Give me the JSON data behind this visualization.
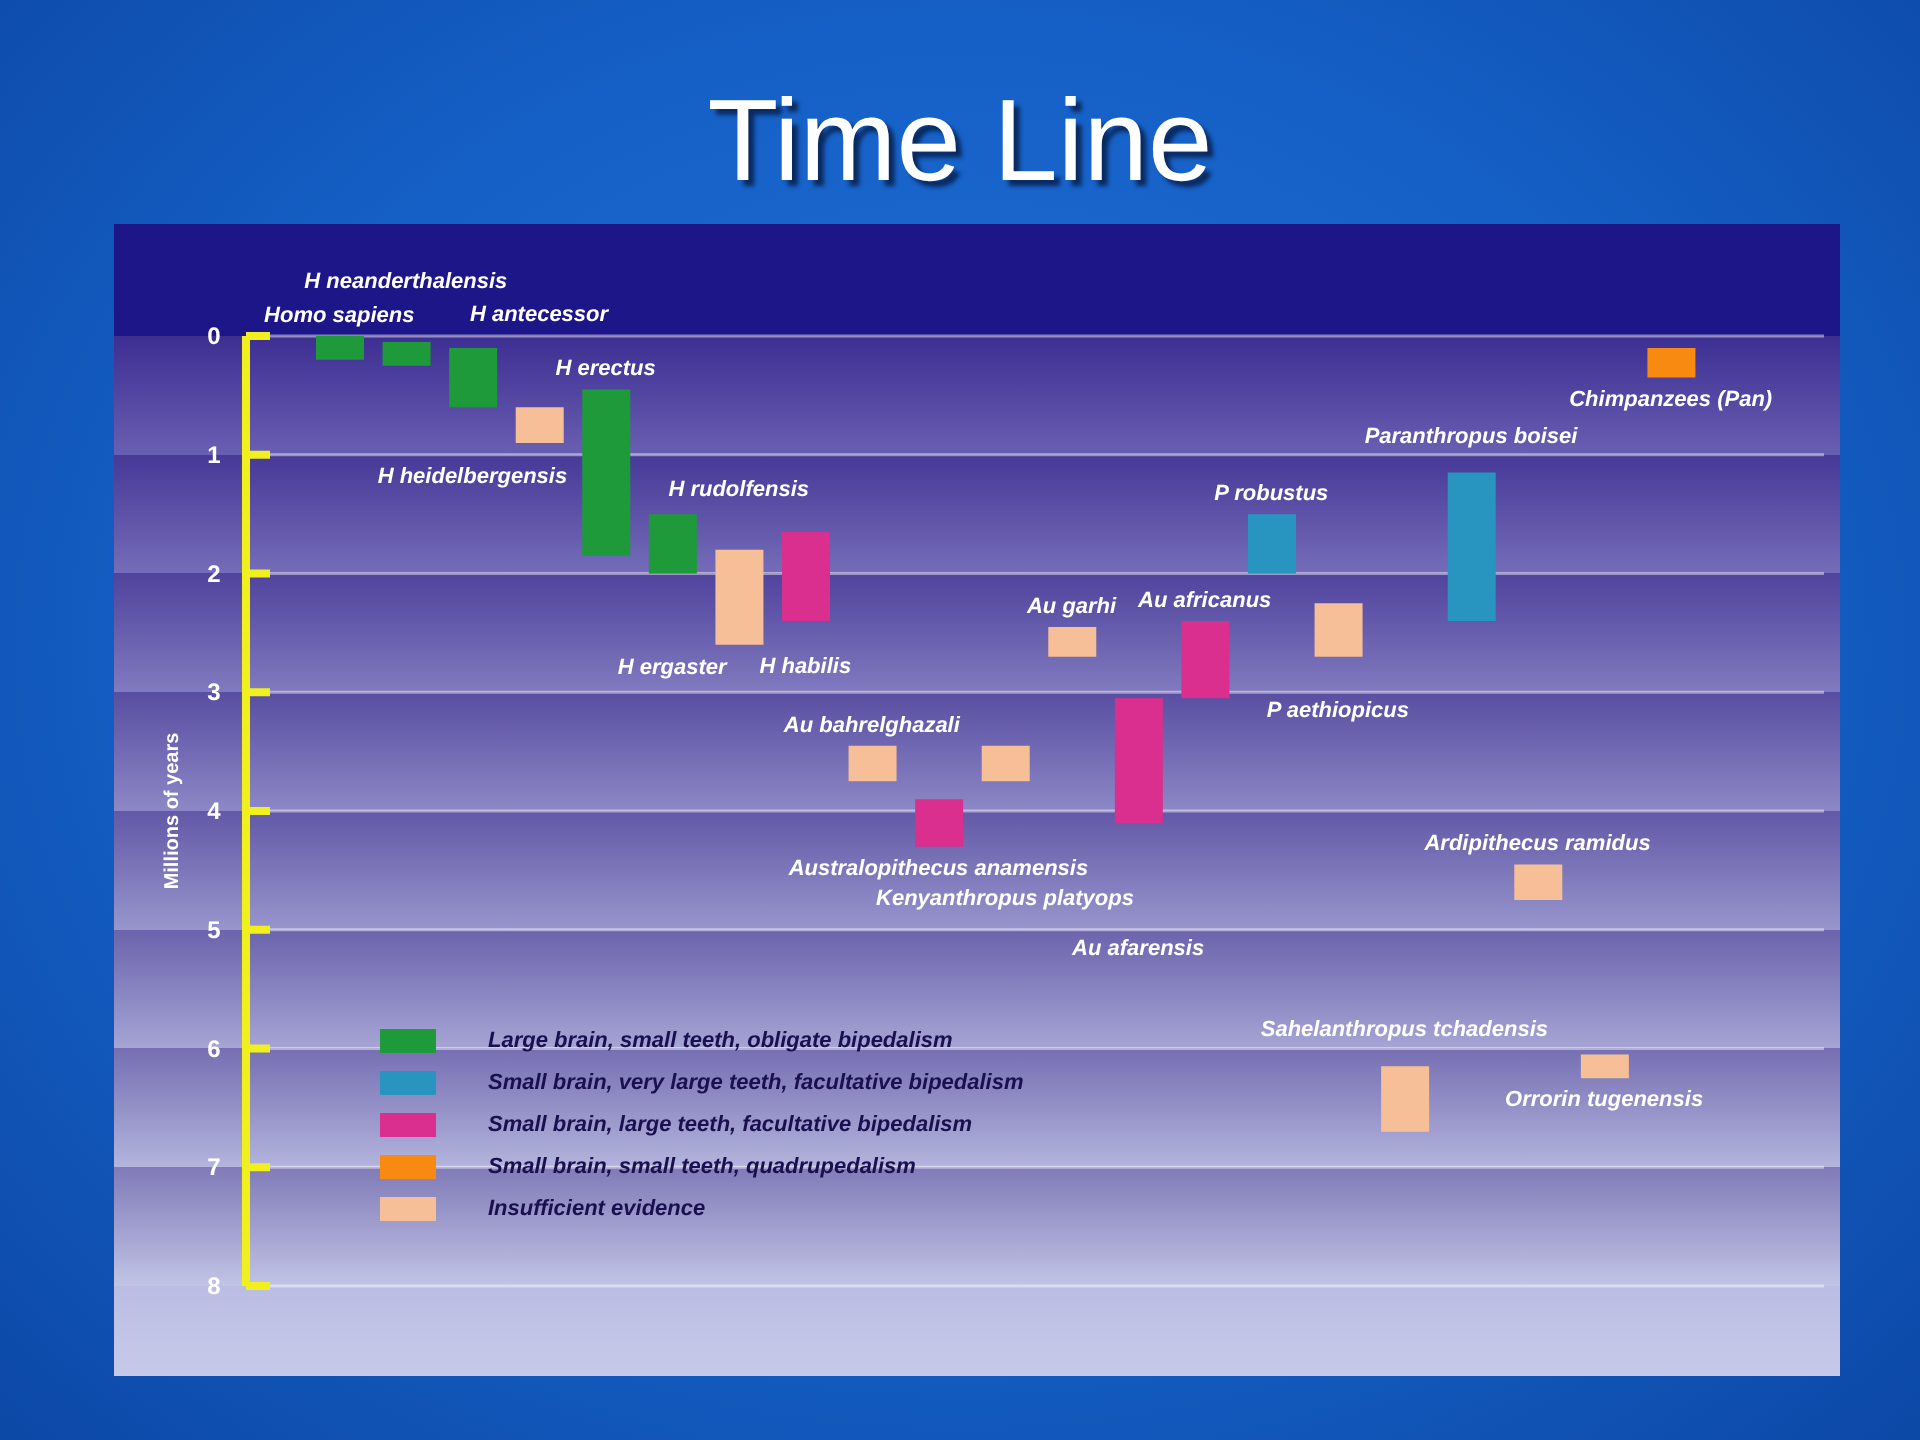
{
  "chart_data": {
    "type": "bar",
    "title": "Time Line",
    "ylabel": "Millions of years",
    "categories": [
      "Homo sapiens",
      "H neanderthalensis",
      "H heidelbergensis",
      "H antecessor",
      "H erectus",
      "H ergaster",
      "H rudolfensis",
      "H habilis",
      "Au bahrelghazali",
      "Australopithecus anamensis",
      "Kenyanthropus platyops",
      "Au garhi",
      "Au afarensis",
      "Au africanus",
      "P robustus",
      "P aethiopicus",
      "Sahelanthropus tchadensis",
      "Paranthropus boisei",
      "Ardipithecus ramidus",
      "Orrorin tugenensis",
      "Chimpanzees (Pan)"
    ],
    "series": [
      {
        "name": "Large brain, small teeth, obligate bipedalism",
        "color": "#1f9a3a",
        "values": [
          0.2,
          0.2,
          0.5,
          null,
          1.4,
          0.5,
          null,
          null,
          null,
          null,
          null,
          null,
          null,
          null,
          null,
          null,
          null,
          null,
          null,
          null,
          null
        ],
        "base": [
          0,
          0.05,
          0.1,
          null,
          0.45,
          1.5,
          null,
          null,
          null,
          null,
          null,
          null,
          null,
          null,
          null,
          null,
          null,
          null,
          null,
          null,
          null
        ]
      },
      {
        "name": "Small brain, very large teeth, facultative bipedalism",
        "color": "#2894c0",
        "values": [
          null,
          null,
          null,
          null,
          null,
          null,
          null,
          null,
          null,
          null,
          null,
          null,
          null,
          null,
          0.5,
          null,
          null,
          1.25,
          null,
          null,
          null
        ],
        "base": [
          null,
          null,
          null,
          null,
          null,
          null,
          null,
          null,
          null,
          null,
          null,
          null,
          null,
          null,
          1.5,
          null,
          null,
          1.15,
          null,
          null,
          null
        ]
      },
      {
        "name": "Small brain, large teeth, facultative bipedalism",
        "color": "#da2f8f",
        "values": [
          null,
          null,
          null,
          null,
          null,
          null,
          null,
          0.75,
          null,
          0.4,
          null,
          null,
          1.05,
          0.65,
          null,
          null,
          null,
          null,
          null,
          null,
          null
        ],
        "base": [
          null,
          null,
          null,
          null,
          null,
          null,
          null,
          1.65,
          null,
          3.9,
          null,
          null,
          3.05,
          2.4,
          null,
          null,
          null,
          null,
          null,
          null,
          null
        ]
      },
      {
        "name": "Small brain, small teeth, quadrupedalism",
        "color": "#f88a12",
        "values": [
          null,
          null,
          null,
          null,
          null,
          null,
          null,
          null,
          null,
          null,
          null,
          null,
          null,
          null,
          null,
          null,
          null,
          null,
          null,
          null,
          0.25
        ],
        "base": [
          null,
          null,
          null,
          null,
          null,
          null,
          null,
          null,
          null,
          null,
          null,
          null,
          null,
          null,
          null,
          null,
          null,
          null,
          null,
          null,
          0.1
        ]
      },
      {
        "name": "Insufficient evidence",
        "color": "#f7bf97",
        "values": [
          null,
          null,
          null,
          0.3,
          null,
          null,
          0.8,
          null,
          0.3,
          null,
          0.3,
          0.25,
          null,
          null,
          null,
          0.45,
          0.55,
          null,
          0.3,
          0.2,
          null
        ],
        "base": [
          null,
          null,
          null,
          0.6,
          null,
          null,
          1.8,
          null,
          3.45,
          null,
          3.45,
          2.45,
          null,
          null,
          null,
          2.25,
          6.15,
          null,
          4.45,
          6.05,
          null
        ]
      }
    ],
    "ylim": [
      8,
      0
    ],
    "yticks": [
      0,
      1,
      2,
      3,
      4,
      5,
      6,
      7,
      8
    ],
    "grid": "y",
    "legend": "bottom left"
  }
}
